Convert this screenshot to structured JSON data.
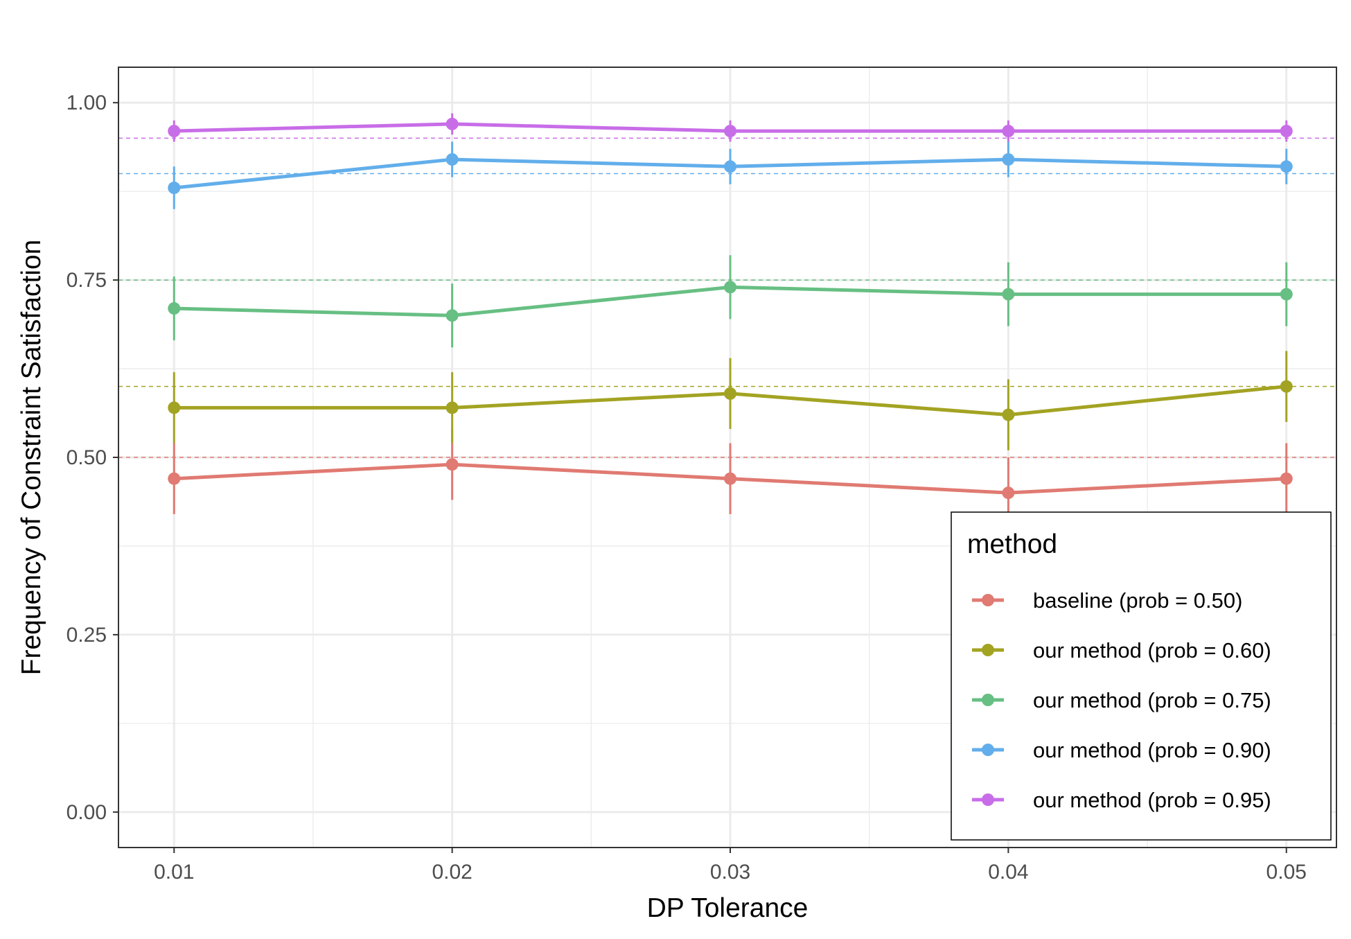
{
  "chart_data": {
    "type": "line",
    "title": "",
    "xlabel": "DP Tolerance",
    "ylabel": "Frequency of Constraint Satisfaction",
    "x": [
      0.01,
      0.02,
      0.03,
      0.04,
      0.05
    ],
    "x_tick_labels": [
      "0.01",
      "0.02",
      "0.03",
      "0.04",
      "0.05"
    ],
    "y_tick_values": [
      0.0,
      0.25,
      0.5,
      0.75,
      1.0
    ],
    "y_tick_labels": [
      "0.00",
      "0.25",
      "0.50",
      "0.75",
      "1.00"
    ],
    "xlim": [
      0.008,
      0.0518
    ],
    "ylim": [
      -0.05,
      1.05
    ],
    "grid": true,
    "legend": {
      "title": "method",
      "position": "bottom-right"
    },
    "series": [
      {
        "name": "baseline (prob = 0.50)",
        "color": "#E07A72",
        "reference": 0.5,
        "values": [
          0.47,
          0.49,
          0.47,
          0.45,
          0.47
        ],
        "error_low": [
          0.42,
          0.44,
          0.42,
          0.4,
          0.42
        ],
        "error_high": [
          0.52,
          0.54,
          0.52,
          0.5,
          0.52
        ]
      },
      {
        "name": "our method (prob = 0.60)",
        "color": "#A3A323",
        "reference": 0.6,
        "values": [
          0.57,
          0.57,
          0.59,
          0.56,
          0.6
        ],
        "error_low": [
          0.52,
          0.52,
          0.54,
          0.51,
          0.55
        ],
        "error_high": [
          0.62,
          0.62,
          0.64,
          0.61,
          0.65
        ]
      },
      {
        "name": "our method (prob = 0.75)",
        "color": "#67BF83",
        "reference": 0.75,
        "values": [
          0.71,
          0.7,
          0.74,
          0.73,
          0.73
        ],
        "error_low": [
          0.665,
          0.655,
          0.695,
          0.685,
          0.685
        ],
        "error_high": [
          0.755,
          0.745,
          0.785,
          0.775,
          0.775
        ]
      },
      {
        "name": "our method (prob = 0.90)",
        "color": "#62AEEB",
        "reference": 0.9,
        "values": [
          0.88,
          0.92,
          0.91,
          0.92,
          0.91
        ],
        "error_low": [
          0.85,
          0.895,
          0.885,
          0.895,
          0.885
        ],
        "error_high": [
          0.91,
          0.945,
          0.935,
          0.945,
          0.935
        ]
      },
      {
        "name": "our method (prob = 0.95)",
        "color": "#C86DE8",
        "reference": 0.95,
        "values": [
          0.96,
          0.97,
          0.96,
          0.96,
          0.96
        ],
        "error_low": [
          0.945,
          0.955,
          0.945,
          0.945,
          0.945
        ],
        "error_high": [
          0.975,
          0.985,
          0.975,
          0.975,
          0.975
        ]
      }
    ]
  }
}
